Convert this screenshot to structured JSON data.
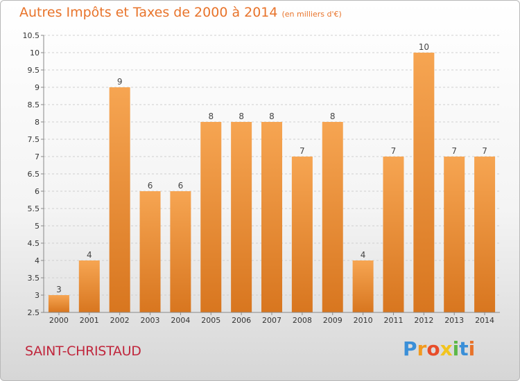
{
  "title": "Autres Impôts et Taxes de 2000 à 2014",
  "unit": "(en milliers d'€)",
  "commune": "SAINT-CHRISTAUD",
  "logo": {
    "letters": [
      "P",
      "r",
      "o",
      "x",
      "i",
      "t",
      "i"
    ],
    "colors": [
      "#3a8fd8",
      "#f29a1e",
      "#e84d2a",
      "#f2c41e",
      "#5cb848",
      "#3a8fd8",
      "#e8732a"
    ]
  },
  "colors": {
    "bar_top": "#f6a552",
    "bar_bottom": "#d8761f",
    "title": "#e8732a",
    "commune": "#c0263c"
  },
  "chart_data": {
    "type": "bar",
    "categories": [
      "2000",
      "2001",
      "2002",
      "2003",
      "2004",
      "2005",
      "2006",
      "2007",
      "2008",
      "2009",
      "2010",
      "2011",
      "2012",
      "2013",
      "2014"
    ],
    "values": [
      3,
      4,
      9,
      6,
      6,
      8,
      8,
      8,
      7,
      8,
      4,
      7,
      10,
      7,
      7
    ],
    "data_labels": [
      "3",
      "4",
      "9",
      "6",
      "6",
      "8",
      "8",
      "8",
      "7",
      "8",
      "4",
      "7",
      "10",
      "7",
      "7"
    ],
    "ylim": [
      2.5,
      10.5
    ],
    "yticks": [
      2.5,
      3,
      3.5,
      4,
      4.5,
      5,
      5.5,
      6,
      6.5,
      7,
      7.5,
      8,
      8.5,
      9,
      9.5,
      10,
      10.5
    ],
    "ytick_labels": [
      "2.5",
      "3",
      "3.5",
      "4",
      "4.5",
      "5",
      "5.5",
      "6",
      "6.5",
      "7",
      "7.5",
      "8",
      "8.5",
      "9",
      "9.5",
      "10",
      "10.5"
    ],
    "grid": "horizontal dashed",
    "xlabel": "",
    "ylabel": ""
  }
}
